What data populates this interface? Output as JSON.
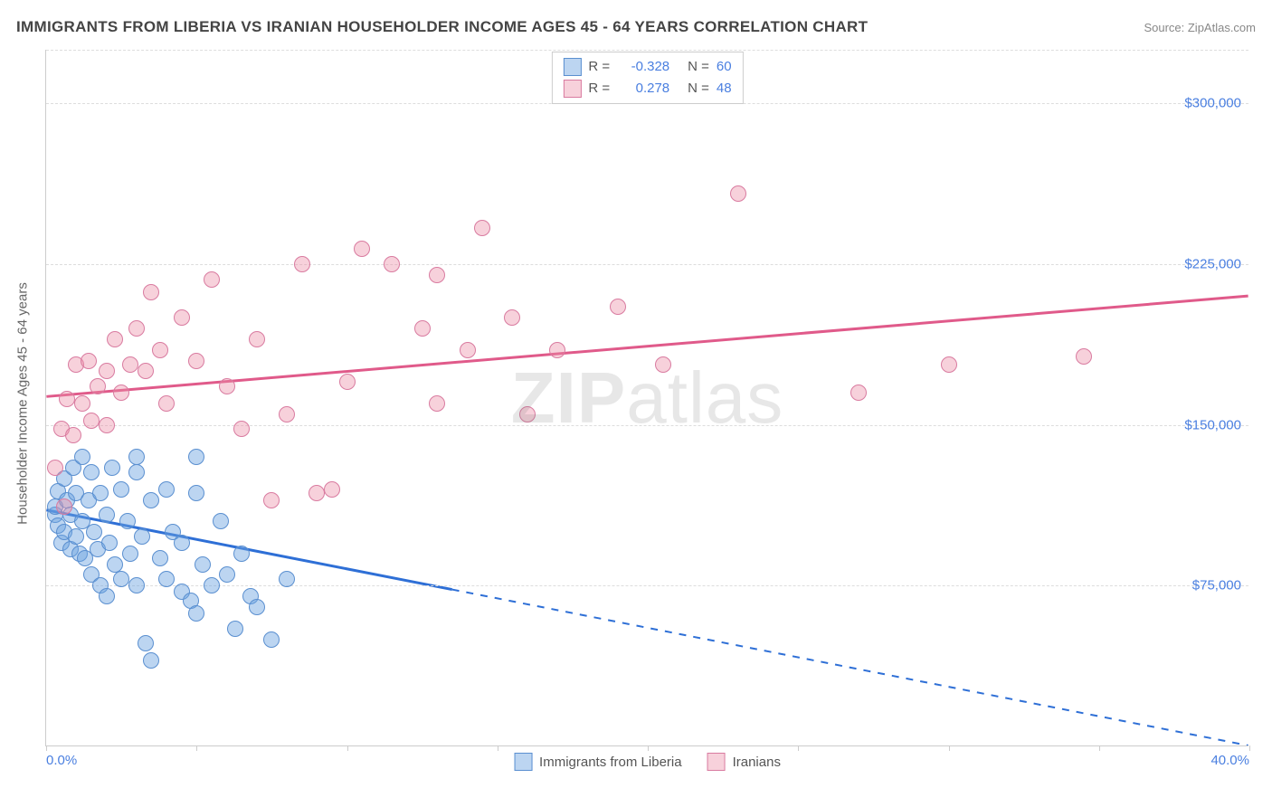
{
  "header": {
    "title": "IMMIGRANTS FROM LIBERIA VS IRANIAN HOUSEHOLDER INCOME AGES 45 - 64 YEARS CORRELATION CHART",
    "source_label": "Source: ",
    "source_name": "ZipAtlas.com"
  },
  "chart": {
    "type": "scatter",
    "ylabel": "Householder Income Ages 45 - 64 years",
    "xlim": [
      0,
      40
    ],
    "ylim": [
      0,
      325000
    ],
    "x_ticks": [
      0,
      5,
      10,
      15,
      20,
      25,
      30,
      35,
      40
    ],
    "x_tick_labels": {
      "0": "0.0%",
      "40": "40.0%"
    },
    "y_grid": [
      75000,
      150000,
      225000,
      300000
    ],
    "y_grid_labels": [
      "$75,000",
      "$150,000",
      "$225,000",
      "$300,000"
    ],
    "background_color": "#ffffff",
    "grid_color": "#dddddd",
    "axis_color": "#cccccc",
    "tick_label_color": "#4a7fe0",
    "axis_label_color": "#666666",
    "watermark": "ZIPatlas",
    "series": [
      {
        "name": "Immigrants from Liberia",
        "fill": "rgba(106,161,225,0.45)",
        "stroke": "#5a8fd0",
        "trend_color": "#2e6fd6",
        "R": "-0.328",
        "N": "60",
        "trend": {
          "x1": 0,
          "y1": 110000,
          "x2": 40,
          "y2": 0,
          "solid_until_x": 13.5
        },
        "points": [
          [
            0.3,
            108000
          ],
          [
            0.3,
            112000
          ],
          [
            0.4,
            103000
          ],
          [
            0.4,
            119000
          ],
          [
            0.5,
            95000
          ],
          [
            0.6,
            125000
          ],
          [
            0.6,
            100000
          ],
          [
            0.7,
            115000
          ],
          [
            0.8,
            92000
          ],
          [
            0.8,
            108000
          ],
          [
            0.9,
            130000
          ],
          [
            1.0,
            98000
          ],
          [
            1.0,
            118000
          ],
          [
            1.1,
            90000
          ],
          [
            1.2,
            105000
          ],
          [
            1.2,
            135000
          ],
          [
            1.3,
            88000
          ],
          [
            1.4,
            115000
          ],
          [
            1.5,
            80000
          ],
          [
            1.5,
            128000
          ],
          [
            1.6,
            100000
          ],
          [
            1.7,
            92000
          ],
          [
            1.8,
            75000
          ],
          [
            1.8,
            118000
          ],
          [
            2.0,
            70000
          ],
          [
            2.0,
            108000
          ],
          [
            2.1,
            95000
          ],
          [
            2.2,
            130000
          ],
          [
            2.3,
            85000
          ],
          [
            2.5,
            78000
          ],
          [
            2.5,
            120000
          ],
          [
            2.7,
            105000
          ],
          [
            2.8,
            90000
          ],
          [
            3.0,
            75000
          ],
          [
            3.0,
            128000
          ],
          [
            3.2,
            98000
          ],
          [
            3.3,
            48000
          ],
          [
            3.5,
            40000
          ],
          [
            3.5,
            115000
          ],
          [
            3.8,
            88000
          ],
          [
            4.0,
            78000
          ],
          [
            4.0,
            120000
          ],
          [
            4.2,
            100000
          ],
          [
            4.5,
            72000
          ],
          [
            4.5,
            95000
          ],
          [
            4.8,
            68000
          ],
          [
            5.0,
            62000
          ],
          [
            5.0,
            118000
          ],
          [
            5.2,
            85000
          ],
          [
            5.5,
            75000
          ],
          [
            5.8,
            105000
          ],
          [
            6.0,
            80000
          ],
          [
            6.3,
            55000
          ],
          [
            6.5,
            90000
          ],
          [
            6.8,
            70000
          ],
          [
            7.0,
            65000
          ],
          [
            7.5,
            50000
          ],
          [
            8.0,
            78000
          ],
          [
            5.0,
            135000
          ],
          [
            3.0,
            135000
          ]
        ]
      },
      {
        "name": "Iranians",
        "fill": "rgba(235,140,165,0.40)",
        "stroke": "#d97ba0",
        "trend_color": "#e05a8a",
        "R": "0.278",
        "N": "48",
        "trend": {
          "x1": 0,
          "y1": 163000,
          "x2": 40,
          "y2": 210000,
          "solid_until_x": 40
        },
        "points": [
          [
            0.3,
            130000
          ],
          [
            0.5,
            148000
          ],
          [
            0.6,
            112000
          ],
          [
            0.7,
            162000
          ],
          [
            0.9,
            145000
          ],
          [
            1.0,
            178000
          ],
          [
            1.2,
            160000
          ],
          [
            1.4,
            180000
          ],
          [
            1.5,
            152000
          ],
          [
            1.7,
            168000
          ],
          [
            2.0,
            175000
          ],
          [
            2.0,
            150000
          ],
          [
            2.3,
            190000
          ],
          [
            2.5,
            165000
          ],
          [
            2.8,
            178000
          ],
          [
            3.0,
            195000
          ],
          [
            3.3,
            175000
          ],
          [
            3.5,
            212000
          ],
          [
            3.8,
            185000
          ],
          [
            4.0,
            160000
          ],
          [
            4.5,
            200000
          ],
          [
            5.0,
            180000
          ],
          [
            5.5,
            218000
          ],
          [
            6.0,
            168000
          ],
          [
            6.5,
            148000
          ],
          [
            7.0,
            190000
          ],
          [
            7.5,
            115000
          ],
          [
            8.0,
            155000
          ],
          [
            8.5,
            225000
          ],
          [
            9.0,
            118000
          ],
          [
            9.5,
            120000
          ],
          [
            10.0,
            170000
          ],
          [
            10.5,
            232000
          ],
          [
            11.5,
            225000
          ],
          [
            12.5,
            195000
          ],
          [
            13.0,
            220000
          ],
          [
            14.0,
            185000
          ],
          [
            14.5,
            242000
          ],
          [
            15.5,
            200000
          ],
          [
            16.0,
            155000
          ],
          [
            17.0,
            185000
          ],
          [
            19.0,
            205000
          ],
          [
            20.5,
            178000
          ],
          [
            23.0,
            258000
          ],
          [
            27.0,
            165000
          ],
          [
            30.0,
            178000
          ],
          [
            34.5,
            182000
          ],
          [
            13.0,
            160000
          ]
        ]
      }
    ],
    "legend_bottom": [
      {
        "label": "Immigrants from Liberia",
        "fill": "rgba(106,161,225,0.45)",
        "stroke": "#5a8fd0"
      },
      {
        "label": "Iranians",
        "fill": "rgba(235,140,165,0.40)",
        "stroke": "#d97ba0"
      }
    ]
  }
}
